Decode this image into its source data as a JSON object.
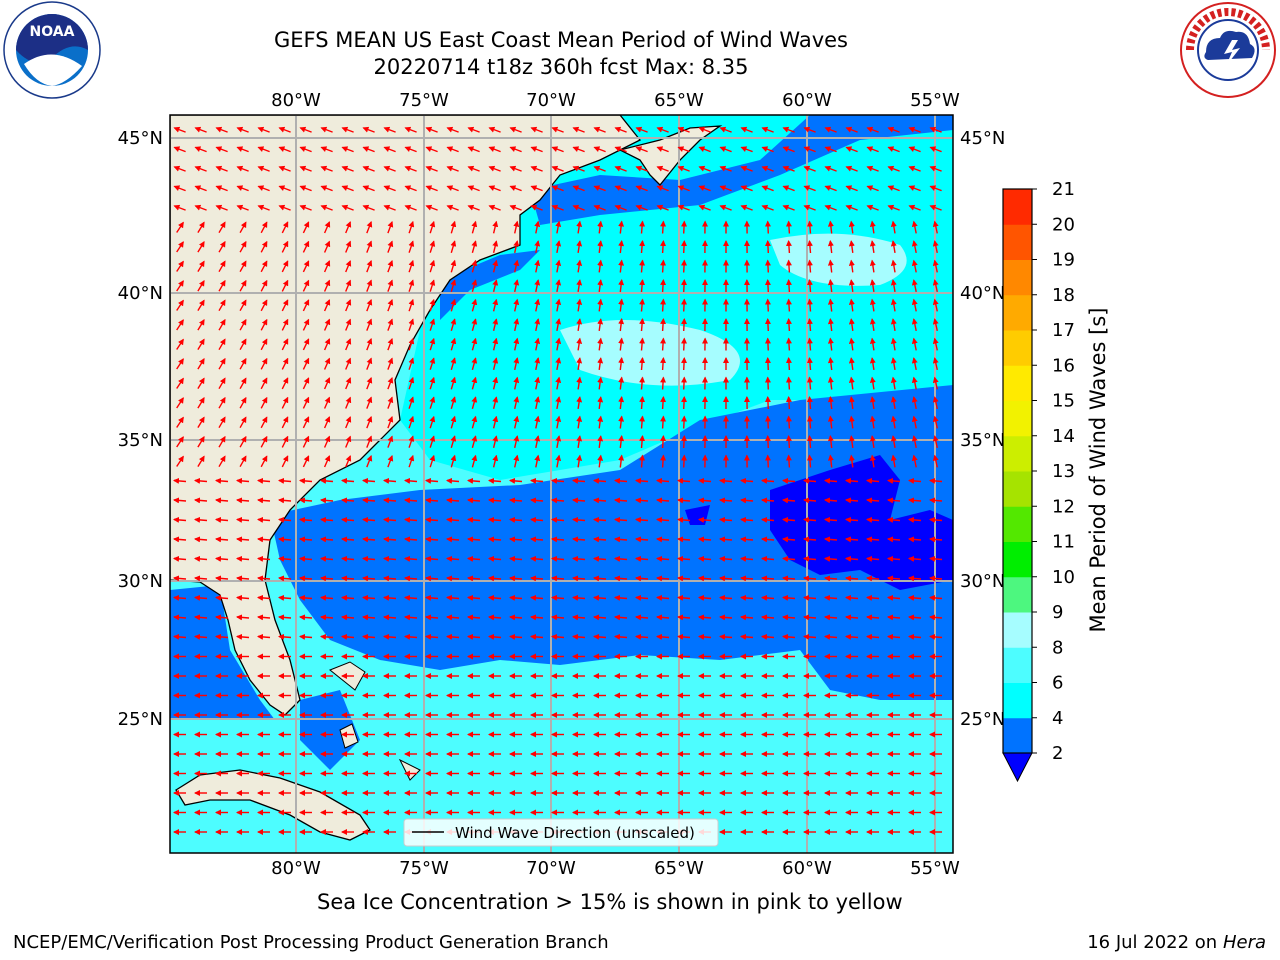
{
  "title": {
    "line1": "GEFS MEAN US East Coast Mean Period of Wind Waves",
    "line2": "20220714 t18z 360h fcst   Max: 8.35"
  },
  "logos": {
    "left": {
      "icon": "noaa-logo",
      "text": "NOAA"
    },
    "right": {
      "icon": "national-weather-service-logo",
      "text": "NATIONAL WEATHER SERVICE"
    }
  },
  "map": {
    "lon_ticks": [
      "80°W",
      "75°W",
      "70°W",
      "65°W",
      "60°W",
      "55°W"
    ],
    "lat_ticks": [
      "45°N",
      "40°N",
      "35°N",
      "30°N",
      "25°N"
    ],
    "lon_range": [
      -85,
      -54.5
    ],
    "lat_range": [
      20.5,
      46.5
    ],
    "land_color": "#efecdc",
    "arrow_color": "#ff0000",
    "legend_label": "Wind Wave Direction (unscaled)"
  },
  "colorbar": {
    "label": "Mean Period of Wind Waves [s]",
    "ticks": [
      "2",
      "4",
      "6",
      "8",
      "9",
      "10",
      "11",
      "12",
      "13",
      "14",
      "15",
      "16",
      "17",
      "18",
      "19",
      "20",
      "21"
    ],
    "colors": [
      "#0073ff",
      "#00ffff",
      "#4dfdff",
      "#a6fdff",
      "#4df77f",
      "#00ee00",
      "#53e800",
      "#a6e300",
      "#ccee00",
      "#f2f200",
      "#ffea00",
      "#ffcc00",
      "#ffaa00",
      "#ff8800",
      "#ff5500",
      "#ff2a00",
      "#ff0000"
    ],
    "under_color": "#0000ff"
  },
  "notes": {
    "sea_ice": "Sea Ice Concentration > 15% is shown in pink to yellow",
    "producer": "NCEP/EMC/Verification Post Processing Product Generation Branch",
    "date": "16 Jul 2022 on ",
    "machine": "Hera"
  }
}
